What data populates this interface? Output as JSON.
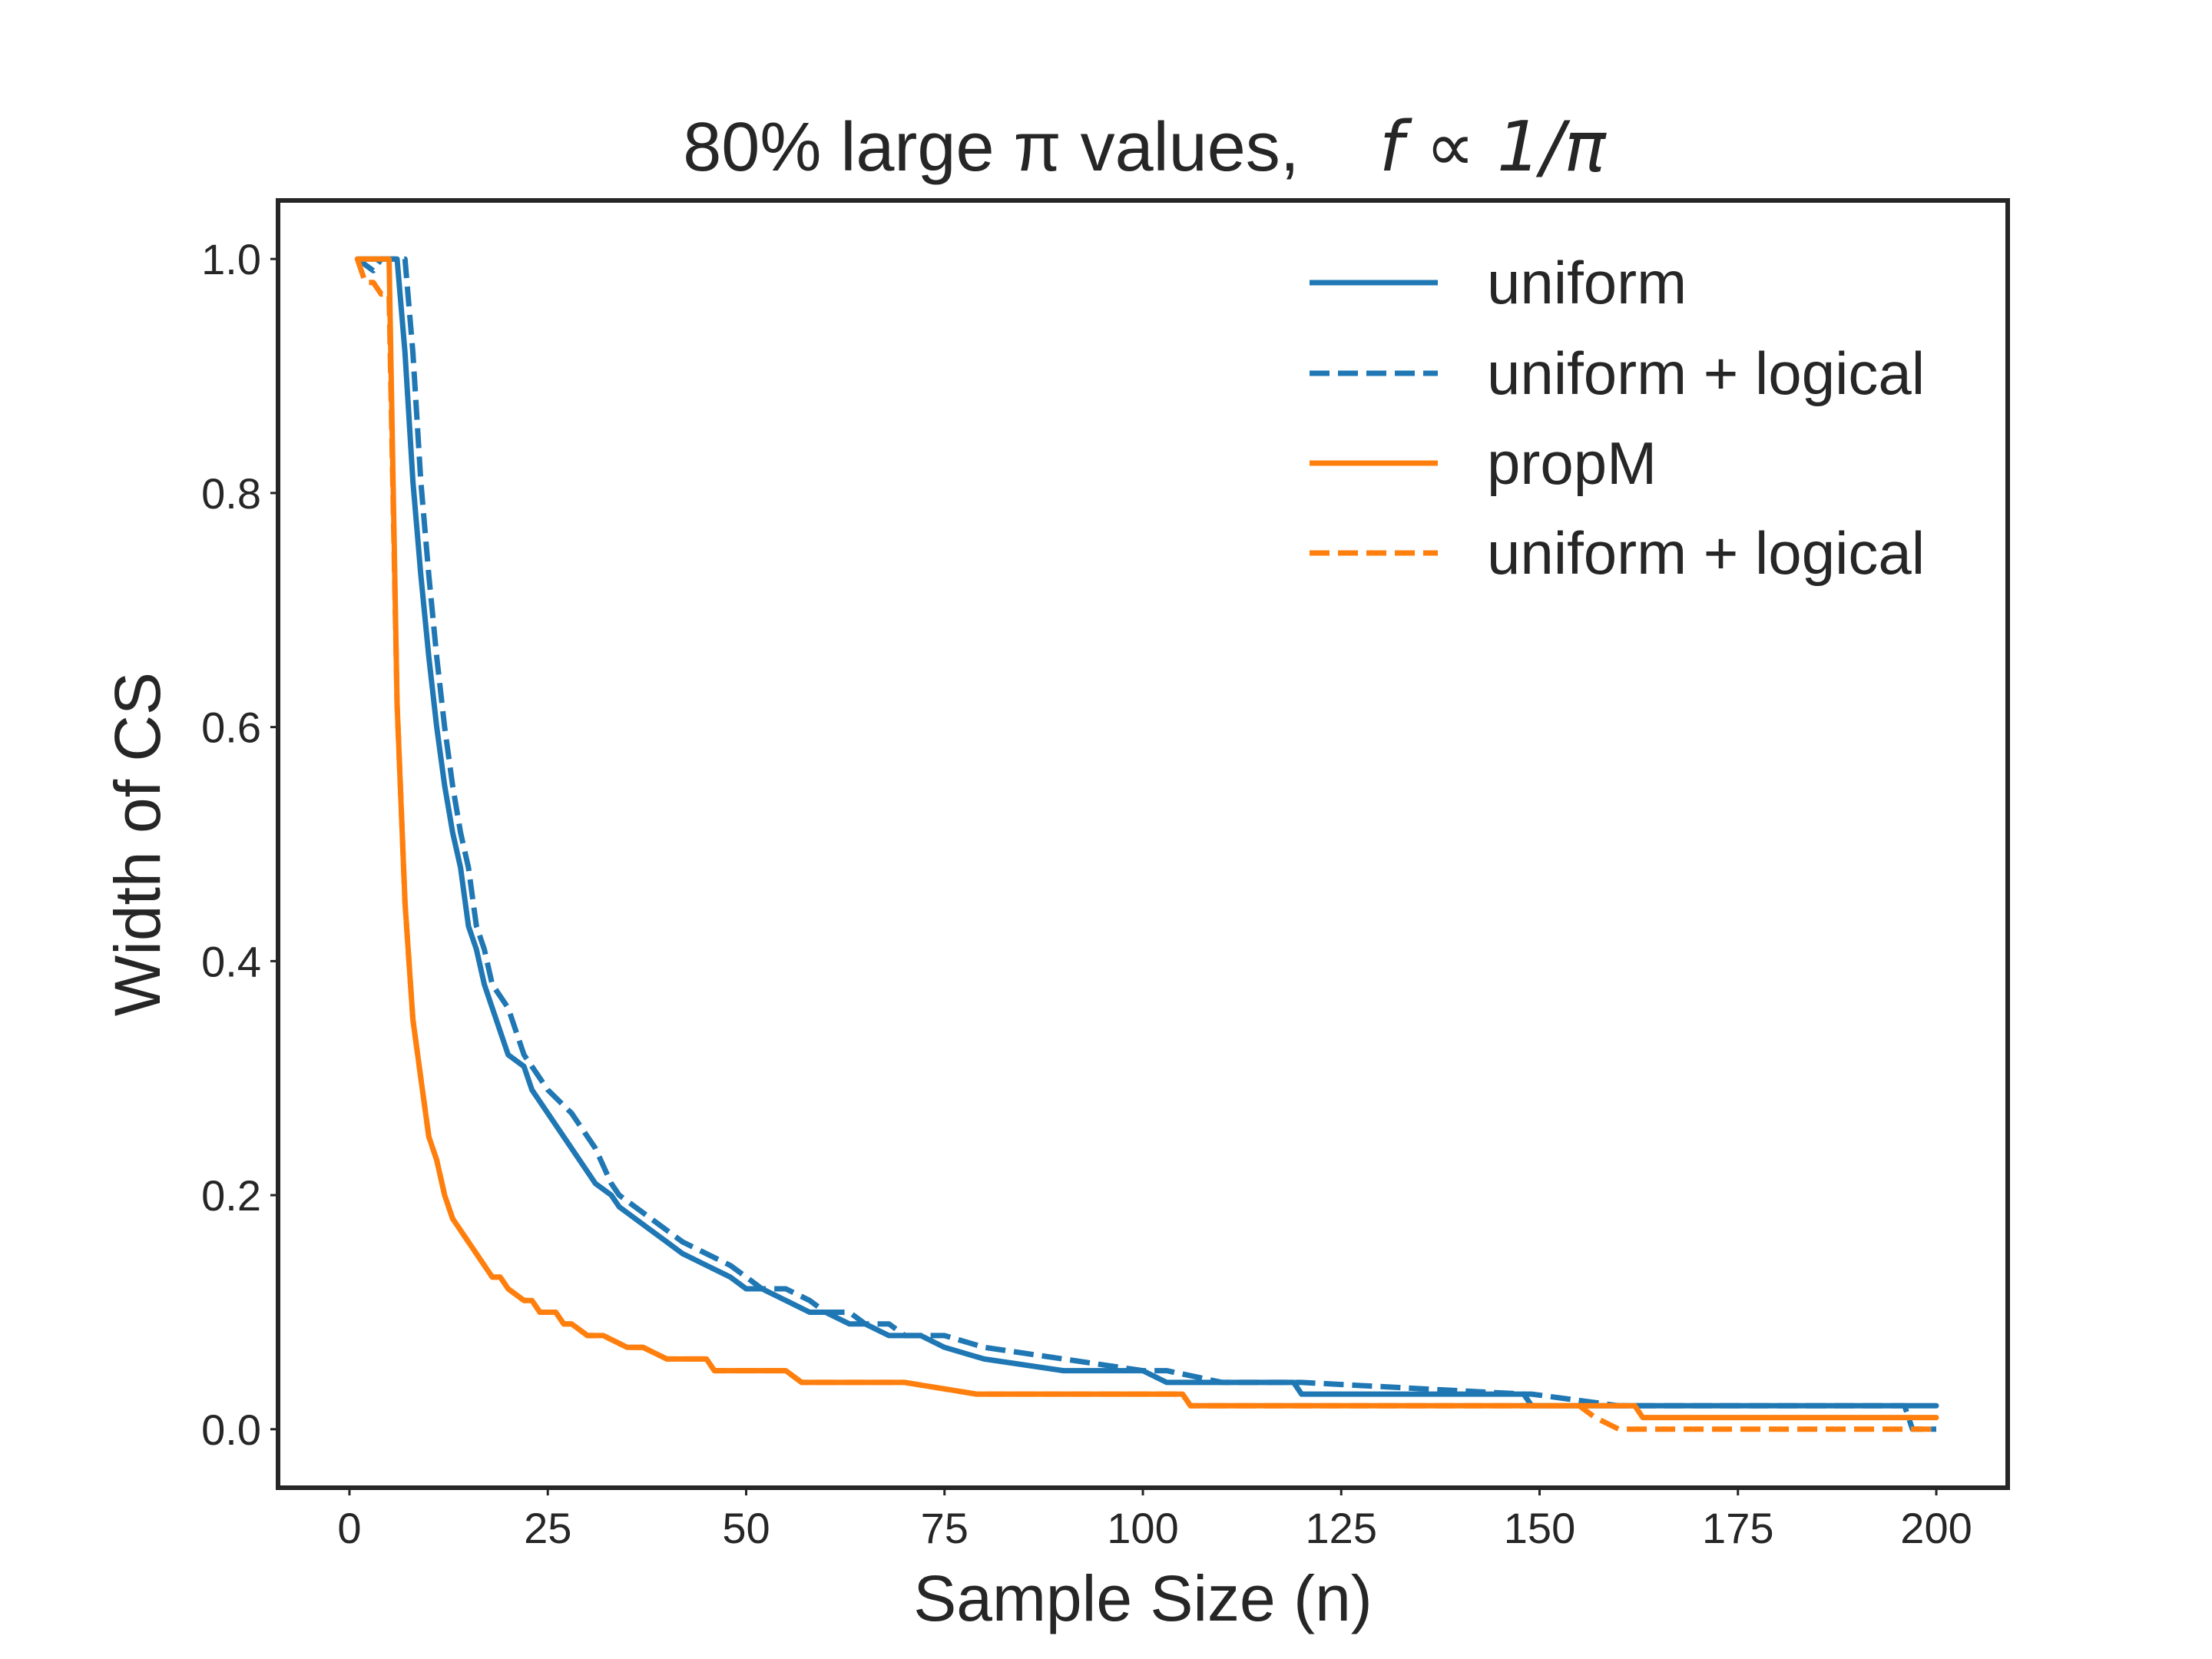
{
  "chart_data": {
    "type": "line",
    "title_text": "80% large π values,",
    "title_math": "f ∝ 1/π",
    "xlabel": "Sample Size (n)",
    "ylabel": "Width of CS",
    "xlim": [
      -9,
      209
    ],
    "ylim": [
      -0.05,
      1.05
    ],
    "xticks": [
      0,
      25,
      50,
      75,
      100,
      125,
      150,
      175,
      200
    ],
    "xtick_labels": [
      "0",
      "25",
      "50",
      "75",
      "100",
      "125",
      "150",
      "175",
      "200"
    ],
    "yticks": [
      0.0,
      0.2,
      0.4,
      0.6,
      0.8,
      1.0
    ],
    "ytick_labels": [
      "0.0",
      "0.2",
      "0.4",
      "0.6",
      "0.8",
      "1.0"
    ],
    "grid": false,
    "legend_position": "top-right",
    "series": [
      {
        "name": "uniform",
        "color": "#1f77b4",
        "style": "solid",
        "x": [
          1,
          6,
          7,
          8,
          9,
          10,
          11,
          12,
          13,
          14,
          15,
          16,
          17,
          18,
          20,
          22,
          23,
          25,
          28,
          31,
          33,
          34,
          36,
          38,
          40,
          42,
          45,
          48,
          50,
          52,
          55,
          58,
          60,
          63,
          65,
          68,
          70,
          72,
          75,
          80,
          90,
          100,
          103,
          110,
          119,
          120,
          148,
          149,
          160,
          200
        ],
        "y": [
          1.0,
          1.0,
          0.92,
          0.81,
          0.73,
          0.66,
          0.6,
          0.55,
          0.51,
          0.48,
          0.43,
          0.41,
          0.38,
          0.36,
          0.32,
          0.31,
          0.29,
          0.27,
          0.24,
          0.21,
          0.2,
          0.19,
          0.18,
          0.17,
          0.16,
          0.15,
          0.14,
          0.13,
          0.12,
          0.12,
          0.11,
          0.1,
          0.1,
          0.09,
          0.09,
          0.08,
          0.08,
          0.08,
          0.07,
          0.06,
          0.05,
          0.05,
          0.04,
          0.04,
          0.04,
          0.03,
          0.03,
          0.02,
          0.02,
          0.02
        ]
      },
      {
        "name": "uniform + logical",
        "color": "#1f77b4",
        "style": "dashed",
        "x": [
          1,
          3,
          4,
          5,
          6,
          7,
          8,
          9,
          10,
          11,
          12,
          13,
          14,
          15,
          16,
          17,
          18,
          20,
          22,
          23,
          25,
          28,
          31,
          33,
          34,
          36,
          38,
          40,
          42,
          45,
          48,
          50,
          52,
          55,
          58,
          60,
          63,
          65,
          68,
          70,
          72,
          75,
          80,
          90,
          100,
          103,
          110,
          119,
          120,
          148,
          149,
          160,
          196,
          197,
          200
        ],
        "y": [
          1.0,
          0.99,
          1.0,
          1.0,
          1.0,
          1.0,
          0.92,
          0.81,
          0.73,
          0.66,
          0.6,
          0.55,
          0.51,
          0.48,
          0.43,
          0.41,
          0.38,
          0.36,
          0.32,
          0.31,
          0.29,
          0.27,
          0.24,
          0.21,
          0.2,
          0.19,
          0.18,
          0.17,
          0.16,
          0.15,
          0.14,
          0.13,
          0.12,
          0.12,
          0.11,
          0.1,
          0.1,
          0.09,
          0.09,
          0.08,
          0.08,
          0.08,
          0.07,
          0.06,
          0.05,
          0.05,
          0.04,
          0.04,
          0.04,
          0.03,
          0.03,
          0.02,
          0.02,
          0.0,
          0.0
        ]
      },
      {
        "name": "propM",
        "color": "#ff7f0e",
        "style": "solid",
        "x": [
          1,
          5,
          6,
          7,
          8,
          9,
          10,
          11,
          12,
          13,
          14,
          15,
          16,
          17,
          18,
          19,
          20,
          22,
          23,
          24,
          25,
          26,
          27,
          28,
          30,
          32,
          35,
          37,
          40,
          45,
          46,
          50,
          55,
          57,
          63,
          65,
          70,
          79,
          80,
          105,
          106,
          155,
          162,
          163,
          200
        ],
        "y": [
          1.0,
          1.0,
          0.62,
          0.45,
          0.35,
          0.3,
          0.25,
          0.23,
          0.2,
          0.18,
          0.17,
          0.16,
          0.15,
          0.14,
          0.13,
          0.13,
          0.12,
          0.11,
          0.11,
          0.1,
          0.1,
          0.1,
          0.09,
          0.09,
          0.08,
          0.08,
          0.07,
          0.07,
          0.06,
          0.06,
          0.05,
          0.05,
          0.05,
          0.04,
          0.04,
          0.04,
          0.04,
          0.03,
          0.03,
          0.03,
          0.02,
          0.02,
          0.02,
          0.01,
          0.01
        ]
      },
      {
        "name": "uniform + logical",
        "color": "#ff7f0e",
        "style": "dashed",
        "x": [
          1,
          2,
          3,
          4,
          5,
          6,
          7,
          8,
          9,
          10,
          11,
          12,
          13,
          14,
          15,
          16,
          17,
          18,
          19,
          20,
          22,
          23,
          24,
          25,
          26,
          27,
          28,
          30,
          32,
          35,
          37,
          40,
          45,
          46,
          50,
          55,
          57,
          63,
          65,
          70,
          79,
          80,
          105,
          106,
          155,
          157,
          160,
          200
        ],
        "y": [
          1.0,
          0.98,
          0.98,
          0.97,
          0.97,
          0.62,
          0.45,
          0.35,
          0.3,
          0.25,
          0.23,
          0.2,
          0.18,
          0.17,
          0.16,
          0.15,
          0.14,
          0.13,
          0.13,
          0.12,
          0.11,
          0.11,
          0.1,
          0.1,
          0.1,
          0.09,
          0.09,
          0.08,
          0.08,
          0.07,
          0.07,
          0.06,
          0.06,
          0.05,
          0.05,
          0.05,
          0.04,
          0.04,
          0.04,
          0.04,
          0.03,
          0.03,
          0.03,
          0.02,
          0.02,
          0.01,
          0.0,
          0.0
        ]
      }
    ]
  }
}
